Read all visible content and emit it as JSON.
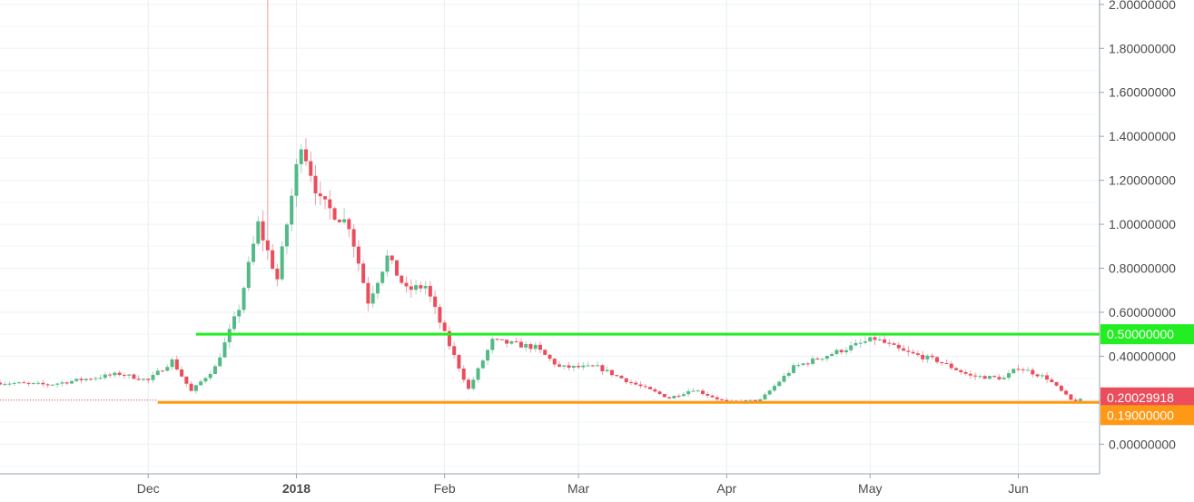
{
  "chart_data": {
    "type": "candlestick",
    "title": "",
    "y_tick_labels": [
      "0.00000000",
      "0.20000000",
      "0.40000000",
      "0.60000000",
      "0.80000000",
      "1.00000000",
      "1.20000000",
      "1.40000000",
      "1.60000000",
      "1.80000000",
      "2.00000000"
    ],
    "y_ticks": [
      0,
      0.2,
      0.4,
      0.6,
      0.8,
      1.0,
      1.2,
      1.4,
      1.6,
      1.8,
      2.0
    ],
    "ylim": [
      -0.135,
      2.02
    ],
    "x_tick_labels": [
      {
        "label": "Dec",
        "date": "2017-12-01",
        "bold": false
      },
      {
        "label": "2018",
        "date": "2018-01-01",
        "bold": true
      },
      {
        "label": "Feb",
        "date": "2018-02-01",
        "bold": false
      },
      {
        "label": "Mar",
        "date": "2018-03-01",
        "bold": false
      },
      {
        "label": "Apr",
        "date": "2018-04-01",
        "bold": false
      },
      {
        "label": "May",
        "date": "2018-05-01",
        "bold": false
      },
      {
        "label": "Jun",
        "date": "2018-06-01",
        "bold": false
      }
    ],
    "xlim": [
      "2017-10-31",
      "2018-06-18"
    ],
    "grid": true,
    "price_series": {
      "last_price_label": "0.20029918",
      "last_price": 0.2003,
      "up_color": "#53b987",
      "down_color": "#eb4d5c",
      "keypoints": [
        {
          "date": "2017-10-31",
          "close": 0.28
        },
        {
          "date": "2017-11-10",
          "close": 0.27
        },
        {
          "date": "2017-11-25",
          "close": 0.32
        },
        {
          "date": "2017-12-01",
          "close": 0.29
        },
        {
          "date": "2017-12-06",
          "close": 0.38
        },
        {
          "date": "2017-12-10",
          "close": 0.24
        },
        {
          "date": "2017-12-15",
          "close": 0.35
        },
        {
          "date": "2017-12-20",
          "close": 0.62
        },
        {
          "date": "2017-12-24",
          "close": 1.0
        },
        {
          "date": "2017-12-28",
          "close": 0.75
        },
        {
          "date": "2018-01-02",
          "close": 1.38
        },
        {
          "date": "2018-01-06",
          "close": 1.1
        },
        {
          "date": "2018-01-12",
          "close": 1.0
        },
        {
          "date": "2018-01-16",
          "close": 0.65
        },
        {
          "date": "2018-01-20",
          "close": 0.85
        },
        {
          "date": "2018-01-24",
          "close": 0.7
        },
        {
          "date": "2018-01-28",
          "close": 0.72
        },
        {
          "date": "2018-02-01",
          "close": 0.5
        },
        {
          "date": "2018-02-06",
          "close": 0.25
        },
        {
          "date": "2018-02-11",
          "close": 0.47
        },
        {
          "date": "2018-02-20",
          "close": 0.44
        },
        {
          "date": "2018-02-25",
          "close": 0.35
        },
        {
          "date": "2018-03-05",
          "close": 0.35
        },
        {
          "date": "2018-03-12",
          "close": 0.28
        },
        {
          "date": "2018-03-20",
          "close": 0.21
        },
        {
          "date": "2018-03-25",
          "close": 0.25
        },
        {
          "date": "2018-04-01",
          "close": 0.19
        },
        {
          "date": "2018-04-08",
          "close": 0.2
        },
        {
          "date": "2018-04-15",
          "close": 0.35
        },
        {
          "date": "2018-04-24",
          "close": 0.42
        },
        {
          "date": "2018-05-02",
          "close": 0.48
        },
        {
          "date": "2018-05-08",
          "close": 0.42
        },
        {
          "date": "2018-05-15",
          "close": 0.38
        },
        {
          "date": "2018-05-22",
          "close": 0.31
        },
        {
          "date": "2018-05-29",
          "close": 0.3
        },
        {
          "date": "2018-06-01",
          "close": 0.35
        },
        {
          "date": "2018-06-07",
          "close": 0.3
        },
        {
          "date": "2018-06-12",
          "close": 0.2
        },
        {
          "date": "2018-06-14",
          "close": 0.2
        }
      ]
    },
    "horizontal_lines": [
      {
        "value": 0.5,
        "label": "0.50000000",
        "color": "#22ee22",
        "start_date": "2017-12-11",
        "text_color": "#111111"
      },
      {
        "value": 0.19,
        "label": "0.19000000",
        "color": "#ff9814",
        "start_date": "2017-12-03",
        "text_color": "#ffffff"
      }
    ],
    "last_price_line_color": "#eb4d5c",
    "last_price_badge_color": "#eb4d5c"
  }
}
